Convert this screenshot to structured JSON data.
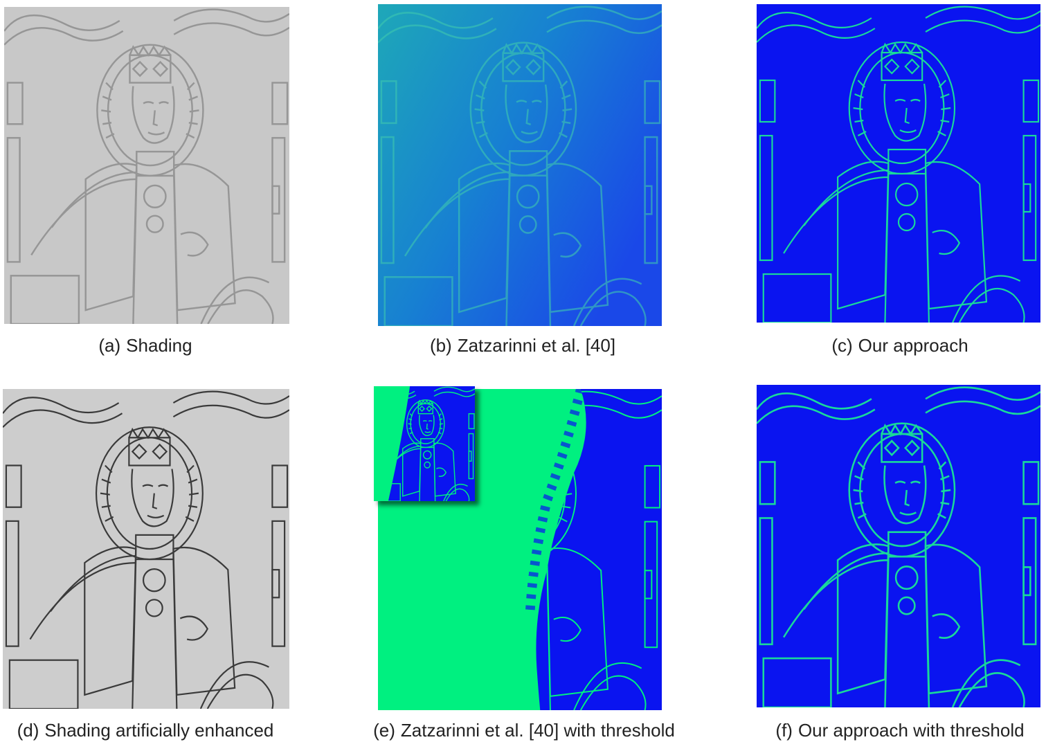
{
  "figure": {
    "panels": [
      {
        "tag": "(a)",
        "label": "Shading"
      },
      {
        "tag": "(b)",
        "label": "Zatzarinni et al. [40]"
      },
      {
        "tag": "(c)",
        "label": "Our approach"
      },
      {
        "tag": "(d)",
        "label": "Shading artificially enhanced"
      },
      {
        "tag": "(e)",
        "label": "Zatzarinni et al. [40] with threshold"
      },
      {
        "tag": "(f)",
        "label": "Our approach with threshold"
      }
    ]
  },
  "colors": {
    "shading_gray": "#c8c8c8",
    "shading_line": "#8a8a8a",
    "enhanced_gray": "#cdcdcd",
    "enhanced_line": "#3a3a3a",
    "heat_blue": "#0a14f0",
    "heat_teal": "#1a8ad0",
    "heat_green": "#00f080"
  }
}
